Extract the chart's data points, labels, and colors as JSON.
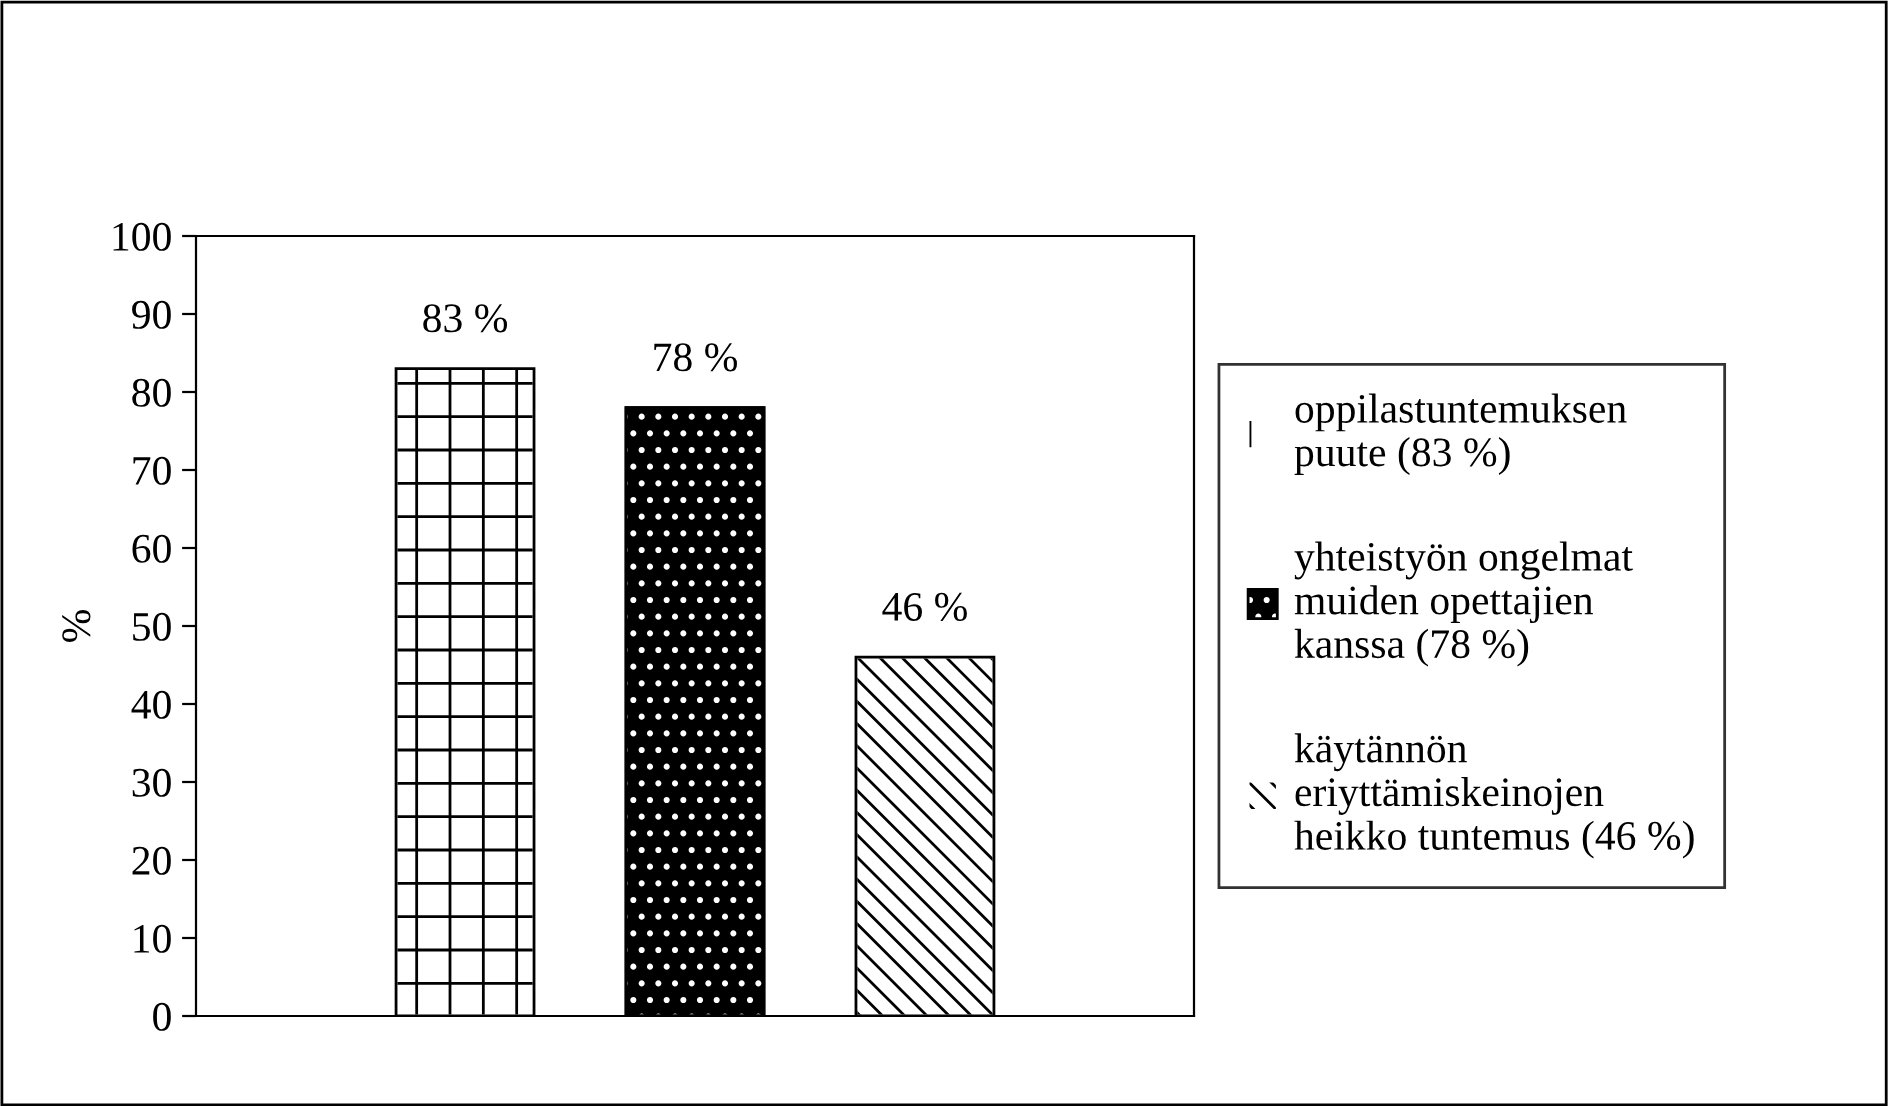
{
  "chart_data": {
    "type": "bar",
    "ylabel": "%",
    "categories": [
      null
    ],
    "series": [
      {
        "name": "oppilastuntemuksen\npuute (83 %)",
        "color": "#ffffff",
        "values": [
          83
        ],
        "value_labels": [
          "83 %"
        ]
      },
      {
        "name": "yhteistyön ongelmat\nmuiden opettajien\nkanssa (78 %)",
        "color": "#000000",
        "values": [
          78
        ],
        "value_labels": [
          "78 %"
        ]
      },
      {
        "name": "käytännön\neriyttämiskeinojen\nheikko tuntemus (46 %)",
        "color": "#ffffff",
        "values": [
          46
        ],
        "value_labels": [
          "46 %"
        ]
      }
    ],
    "ylim": [
      0,
      100
    ],
    "yticks": [
      0,
      10,
      20,
      30,
      40,
      50,
      60,
      70,
      80,
      90,
      100
    ],
    "grid": false,
    "legend": "right",
    "tick_labels": "y"
  }
}
